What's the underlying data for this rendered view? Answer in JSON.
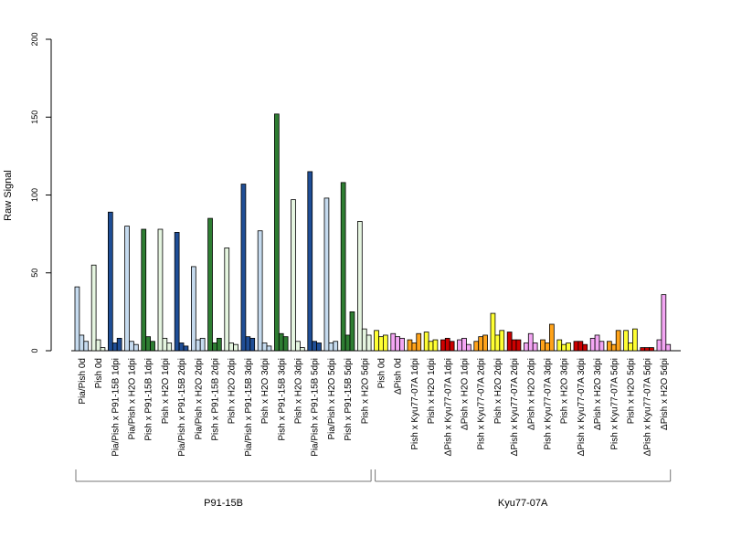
{
  "chart_data": {
    "type": "bar",
    "ylabel": "Raw Signal",
    "xlabel": "",
    "ylim": [
      0,
      200
    ],
    "yticks": [
      0,
      50,
      100,
      150,
      200
    ],
    "bars_per_group": 3,
    "colors": {
      "light_blue": "#c6dbef",
      "dark_blue": "#1f4e96",
      "light_green": "#e5f5e0",
      "dark_green": "#2e7d32",
      "yellow": "#ffff33",
      "orange": "#ffa31a",
      "red": "#cc0000",
      "pink": "#f3a6f3"
    },
    "categories": [
      {
        "label": "Pia/Pish 0d",
        "color": "light_blue",
        "values": [
          41,
          10,
          6
        ]
      },
      {
        "label": "Pish 0d",
        "color": "light_green",
        "values": [
          55,
          7,
          2
        ]
      },
      {
        "label": "Pia/Pish x P91-15B 1dpi",
        "color": "dark_blue",
        "values": [
          89,
          5,
          8
        ]
      },
      {
        "label": "Pia/Pish x H2O 1dpi",
        "color": "light_blue",
        "values": [
          80,
          6,
          4
        ]
      },
      {
        "label": "Pish x P91-15B 1dpi",
        "color": "dark_green",
        "values": [
          78,
          9,
          6
        ]
      },
      {
        "label": "Pish x H2O 1dpi",
        "color": "light_green",
        "values": [
          78,
          8,
          5
        ]
      },
      {
        "label": "Pia/Pish x P91-15B 2dpi",
        "color": "dark_blue",
        "values": [
          76,
          5,
          3
        ]
      },
      {
        "label": "Pia/Pish x H2O 2dpi",
        "color": "light_blue",
        "values": [
          54,
          7,
          8
        ]
      },
      {
        "label": "Pish x P91-15B 2dpi",
        "color": "dark_green",
        "values": [
          85,
          5,
          8
        ]
      },
      {
        "label": "Pish x H2O 2dpi",
        "color": "light_green",
        "values": [
          66,
          5,
          4
        ]
      },
      {
        "label": "Pia/Pish x P91-15B 3dpi",
        "color": "dark_blue",
        "values": [
          107,
          9,
          8
        ]
      },
      {
        "label": "Pish x H2O 3dpi",
        "color": "light_blue",
        "values": [
          77,
          5,
          3
        ]
      },
      {
        "label": "Pish x P91-15B 3dpi",
        "color": "dark_green",
        "values": [
          152,
          11,
          9
        ]
      },
      {
        "label": "Pish x H2O 3dpi",
        "color": "light_green",
        "values": [
          97,
          6,
          2
        ]
      },
      {
        "label": "Pia/Pish x P91-15B 5dpi",
        "color": "dark_blue",
        "values": [
          115,
          6,
          5
        ]
      },
      {
        "label": "Pia/Pish x H2O 5dpi",
        "color": "light_blue",
        "values": [
          98,
          5,
          6
        ]
      },
      {
        "label": "Pish x P91-15B 5dpi",
        "color": "dark_green",
        "values": [
          108,
          10,
          25
        ]
      },
      {
        "label": "Pish x H2O 5dpi",
        "color": "light_green",
        "values": [
          83,
          14,
          10
        ]
      },
      {
        "label": "Pish 0d",
        "color": "yellow",
        "values": [
          13,
          9,
          10
        ]
      },
      {
        "label": "ΔPish 0d",
        "color": "pink",
        "values": [
          11,
          9,
          8
        ]
      },
      {
        "label": "Pish x Kyu77-07A 1dpi",
        "color": "orange",
        "values": [
          7,
          5,
          11
        ]
      },
      {
        "label": "Pish x H2O 1dpi",
        "color": "yellow",
        "values": [
          12,
          6,
          7
        ]
      },
      {
        "label": "ΔPish x Kyu77-07A 1dpi",
        "color": "red",
        "values": [
          7,
          8,
          6
        ]
      },
      {
        "label": "ΔPish x H2O 1dpi",
        "color": "pink",
        "values": [
          7,
          8,
          4
        ]
      },
      {
        "label": "Pish x Kyu77-07A 2dpi",
        "color": "orange",
        "values": [
          6,
          9,
          10
        ]
      },
      {
        "label": "Pish x H2O 2dpi",
        "color": "yellow",
        "values": [
          24,
          10,
          13
        ]
      },
      {
        "label": "ΔPish x Kyu77-07A 2dpi",
        "color": "red",
        "values": [
          12,
          7,
          7
        ]
      },
      {
        "label": "ΔPish x H2O 2dpi",
        "color": "pink",
        "values": [
          5,
          11,
          5
        ]
      },
      {
        "label": "Pish x Kyu77-07A 3dpi",
        "color": "orange",
        "values": [
          7,
          5,
          17
        ]
      },
      {
        "label": "Pish x H2O 3dpi",
        "color": "yellow",
        "values": [
          7,
          4,
          5
        ]
      },
      {
        "label": "ΔPish x Kyu77-07A 3dpi",
        "color": "red",
        "values": [
          6,
          6,
          4
        ]
      },
      {
        "label": "ΔPish x H2O 3dpi",
        "color": "pink",
        "values": [
          8,
          10,
          6
        ]
      },
      {
        "label": "Pish x Kyu77-07A 5dpi",
        "color": "orange",
        "values": [
          6,
          4,
          13
        ]
      },
      {
        "label": "Pish x H2O 5dpi",
        "color": "yellow",
        "values": [
          13,
          5,
          14
        ]
      },
      {
        "label": "ΔPish x Kyu77-07A 5dpi",
        "color": "red",
        "values": [
          2,
          2,
          2
        ]
      },
      {
        "label": "ΔPish x H2O 5dpi",
        "color": "pink",
        "values": [
          7,
          36,
          4
        ]
      }
    ],
    "groups": [
      {
        "label": "P91-15B",
        "first": 0,
        "last": 17
      },
      {
        "label": "Kyu77-07A",
        "first": 18,
        "last": 35
      }
    ],
    "legend": "none",
    "grid": false
  }
}
